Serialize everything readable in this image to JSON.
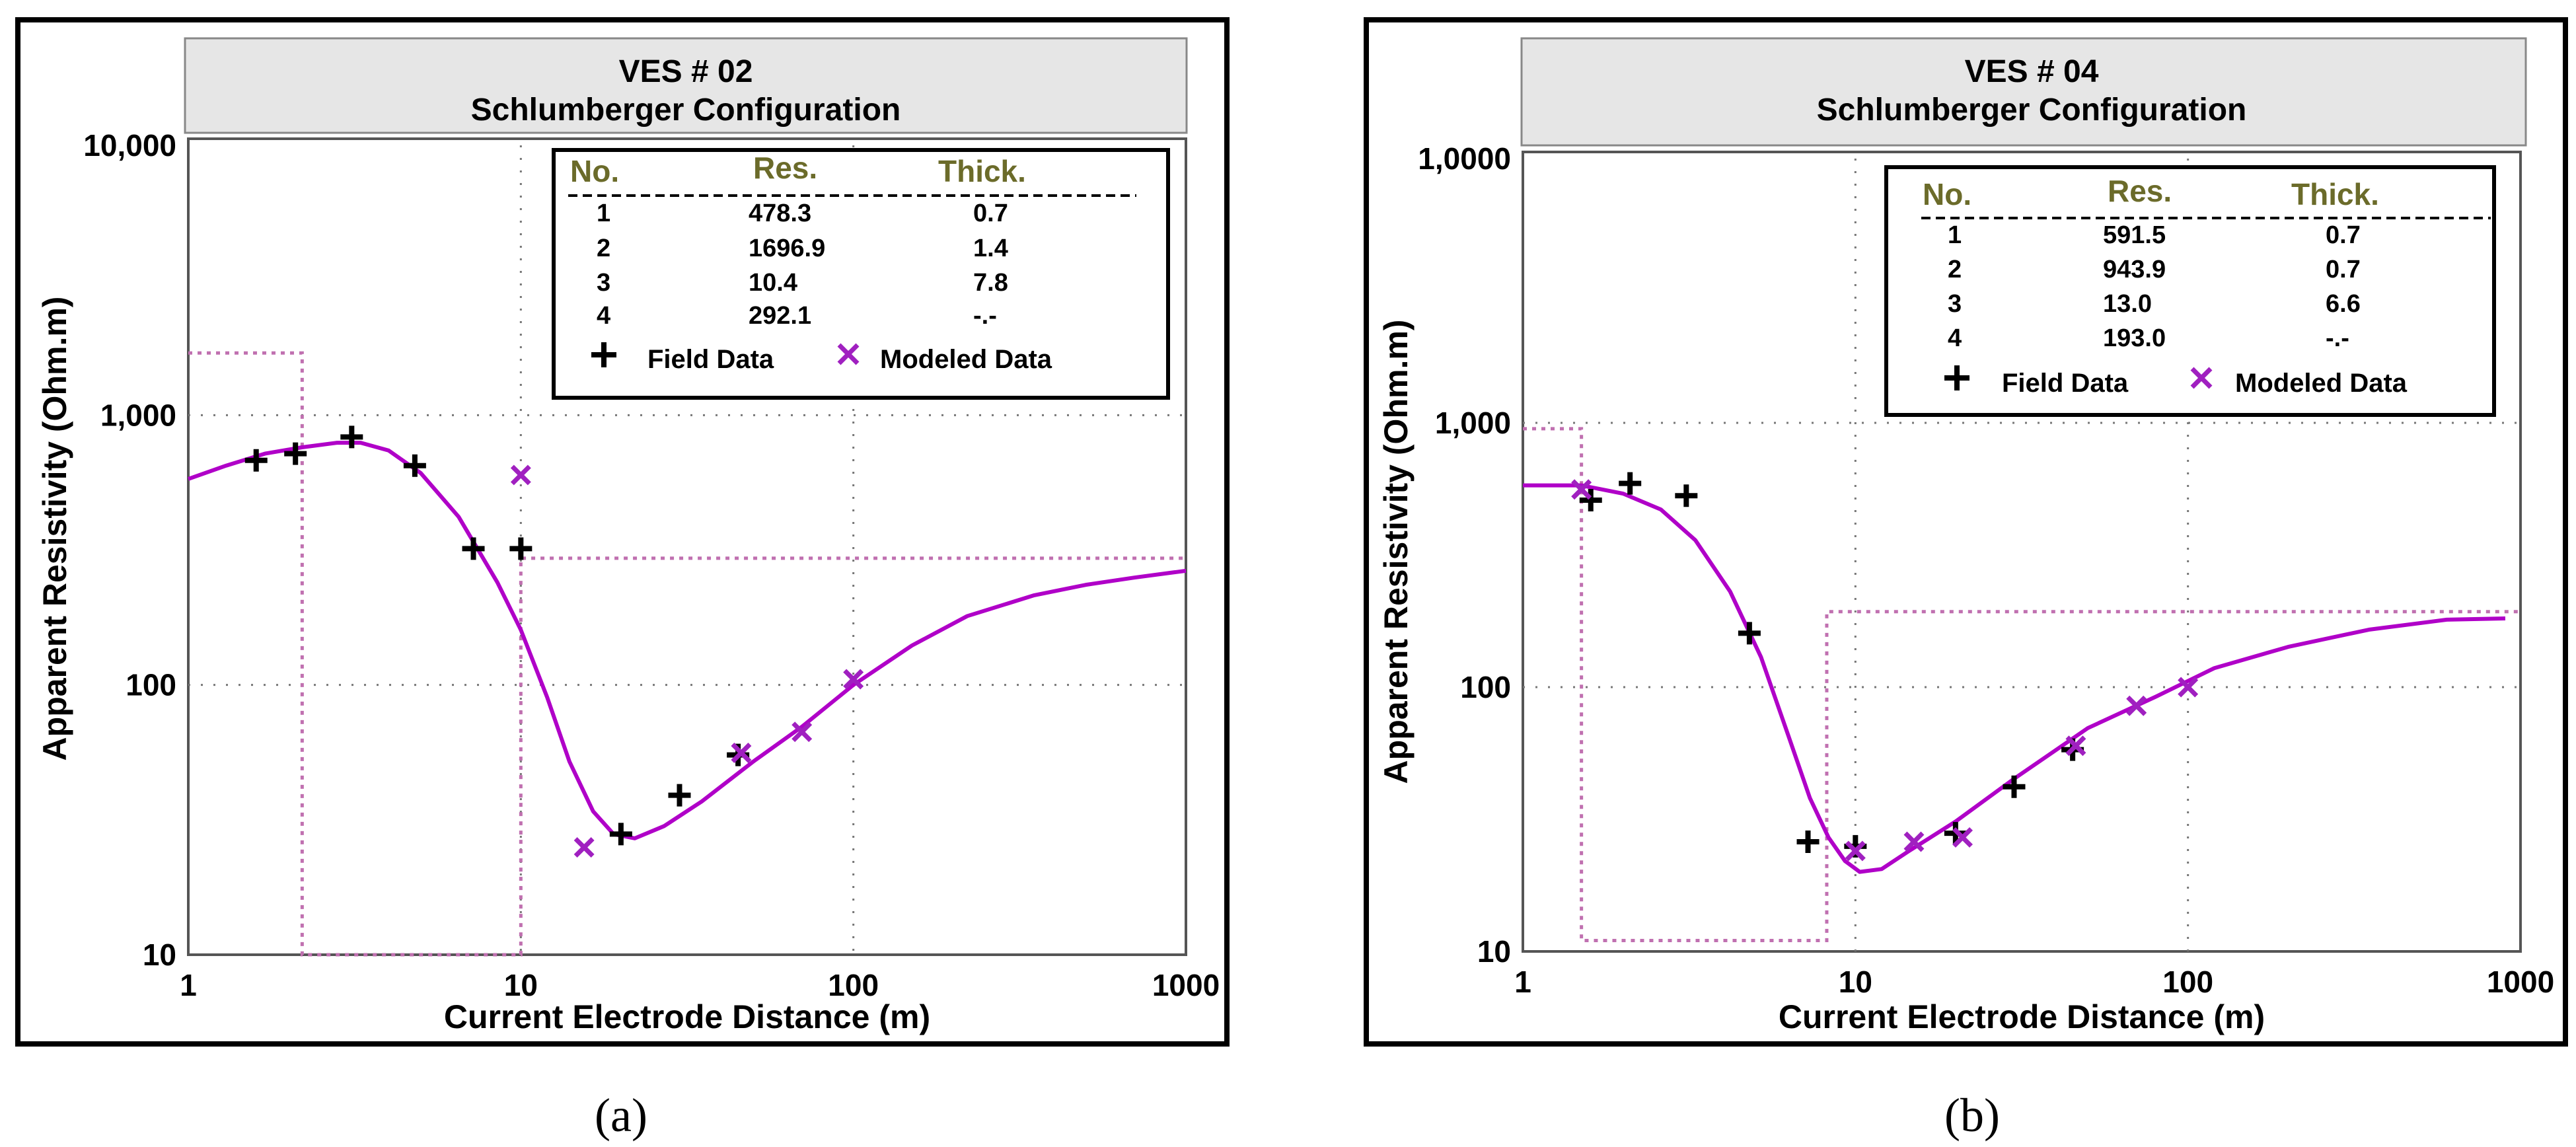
{
  "colors": {
    "curve": "#b000c8",
    "field_marker": "#000000",
    "model_marker": "#a020c0",
    "layer_model": "#c070b0",
    "header_text_olive": "#6b6b2a",
    "title_bar": "#e6e6e6",
    "frame": "#000000"
  },
  "legend_labels": {
    "field": "Field Data",
    "model": "Modeled Data"
  },
  "chart_data": [
    {
      "type": "scatter",
      "panel": "a",
      "caption": "(a)",
      "title": "VES # 02",
      "subtitle": "Schlumberger Configuration",
      "xlabel": "Current Electrode Distance (m)",
      "ylabel": "Apparent Resistivity (Ohm.m)",
      "xscale": "log",
      "yscale": "log",
      "xlim": [
        1,
        1000
      ],
      "ylim": [
        10,
        10000
      ],
      "xticks": [
        {
          "v": 1,
          "label": "1"
        },
        {
          "v": 10,
          "label": "10"
        },
        {
          "v": 100,
          "label": "100"
        },
        {
          "v": 1000,
          "label": "1000"
        }
      ],
      "yticks": [
        {
          "v": 10,
          "label": "10"
        },
        {
          "v": 100,
          "label": "100"
        },
        {
          "v": 1000,
          "label": "1,000"
        },
        {
          "v": 10000,
          "label": "10,000"
        }
      ],
      "table": {
        "headers": [
          "No.",
          "Res.",
          "Thick."
        ],
        "rows": [
          [
            "1",
            "478.3",
            "0.7"
          ],
          [
            "2",
            "1696.9",
            "1.4"
          ],
          [
            "3",
            "10.4",
            "7.8"
          ],
          [
            "4",
            "292.1",
            "-.-"
          ]
        ]
      },
      "field_data": [
        [
          1.6,
          680
        ],
        [
          2.1,
          720
        ],
        [
          3.1,
          830
        ],
        [
          4.8,
          650
        ],
        [
          7.2,
          320
        ],
        [
          10,
          320
        ],
        [
          20,
          28
        ],
        [
          30,
          39
        ],
        [
          45,
          55
        ]
      ],
      "modeled_data": [
        [
          10,
          600
        ],
        [
          15.5,
          25
        ],
        [
          46,
          56
        ],
        [
          70,
          67
        ],
        [
          100,
          105
        ]
      ],
      "model_curve": [
        [
          1,
          580
        ],
        [
          1.3,
          650
        ],
        [
          1.7,
          720
        ],
        [
          2.2,
          760
        ],
        [
          2.8,
          790
        ],
        [
          3.3,
          790
        ],
        [
          4,
          740
        ],
        [
          5,
          610
        ],
        [
          6.5,
          420
        ],
        [
          8.5,
          240
        ],
        [
          10,
          160
        ],
        [
          12,
          90
        ],
        [
          14,
          52
        ],
        [
          16.5,
          34
        ],
        [
          19,
          28
        ],
        [
          22,
          27
        ],
        [
          27,
          30
        ],
        [
          35,
          37
        ],
        [
          50,
          52
        ],
        [
          70,
          70
        ],
        [
          100,
          100
        ],
        [
          150,
          140
        ],
        [
          220,
          180
        ],
        [
          350,
          215
        ],
        [
          500,
          235
        ],
        [
          700,
          250
        ],
        [
          1000,
          265
        ]
      ],
      "layer_model": [
        [
          1,
          1700
        ],
        [
          2.2,
          1700
        ],
        [
          2.2,
          10
        ],
        [
          10,
          10
        ],
        [
          10,
          295
        ],
        [
          1000,
          295
        ]
      ]
    },
    {
      "type": "scatter",
      "panel": "b",
      "caption": "(b)",
      "title": "VES # 04",
      "subtitle": "Schlumberger Configuration",
      "xlabel": "Current Electrode Distance (m)",
      "ylabel": "Apparent Resistivity (Ohm.m)",
      "xscale": "log",
      "yscale": "log",
      "xlim": [
        1,
        1000
      ],
      "ylim": [
        10,
        10000
      ],
      "xticks": [
        {
          "v": 1,
          "label": "1"
        },
        {
          "v": 10,
          "label": "10"
        },
        {
          "v": 100,
          "label": "100"
        },
        {
          "v": 1000,
          "label": "1000"
        }
      ],
      "yticks": [
        {
          "v": 10,
          "label": "10"
        },
        {
          "v": 100,
          "label": "100"
        },
        {
          "v": 1000,
          "label": "1,000"
        },
        {
          "v": 10000,
          "label": "1,0000"
        }
      ],
      "table": {
        "headers": [
          "No.",
          "Res.",
          "Thick."
        ],
        "rows": [
          [
            "1",
            "591.5",
            "0.7"
          ],
          [
            "2",
            "943.9",
            "0.7"
          ],
          [
            "3",
            "13.0",
            "6.6"
          ],
          [
            "4",
            "193.0",
            "-.-"
          ]
        ]
      },
      "field_data": [
        [
          1.6,
          510
        ],
        [
          2.1,
          590
        ],
        [
          3.1,
          530
        ],
        [
          4.8,
          160
        ],
        [
          7.2,
          26
        ],
        [
          10,
          25
        ],
        [
          20,
          28
        ],
        [
          30,
          42
        ],
        [
          45,
          58
        ]
      ],
      "modeled_data": [
        [
          1.5,
          560
        ],
        [
          10,
          24
        ],
        [
          15,
          26
        ],
        [
          21,
          27
        ],
        [
          46,
          60
        ],
        [
          70,
          85
        ],
        [
          100,
          100
        ]
      ],
      "model_curve": [
        [
          1,
          580
        ],
        [
          1.5,
          580
        ],
        [
          2,
          540
        ],
        [
          2.6,
          470
        ],
        [
          3.3,
          360
        ],
        [
          4.2,
          230
        ],
        [
          5.2,
          130
        ],
        [
          6.3,
          65
        ],
        [
          7.3,
          38
        ],
        [
          8.3,
          27
        ],
        [
          9.3,
          22
        ],
        [
          10.3,
          20
        ],
        [
          12,
          20.5
        ],
        [
          14.5,
          24
        ],
        [
          20,
          31
        ],
        [
          30,
          45
        ],
        [
          50,
          70
        ],
        [
          80,
          92
        ],
        [
          120,
          118
        ],
        [
          200,
          142
        ],
        [
          350,
          165
        ],
        [
          600,
          180
        ],
        [
          900,
          182
        ]
      ],
      "layer_model": [
        [
          1,
          950
        ],
        [
          1.5,
          950
        ],
        [
          1.5,
          11
        ],
        [
          8.2,
          11
        ],
        [
          8.2,
          193
        ],
        [
          1000,
          193
        ]
      ]
    }
  ]
}
